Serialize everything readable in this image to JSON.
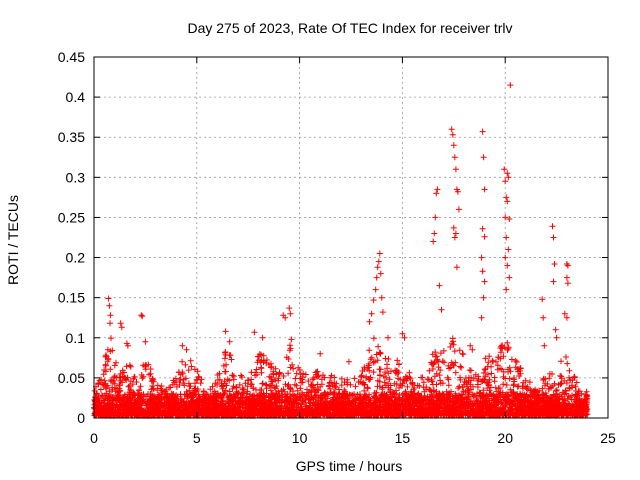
{
  "chart_data": {
    "type": "scatter",
    "title": "Day 275 of 2023, Rate Of TEC Index for receiver trlv",
    "xlabel": "GPS time / hours",
    "ylabel": "ROTI / TECUs",
    "xlim": [
      0,
      25
    ],
    "ylim": [
      0,
      0.45
    ],
    "xticks": [
      "0",
      "5",
      "10",
      "15",
      "20",
      "25"
    ],
    "yticks": [
      "0",
      "0.05",
      "0.1",
      "0.15",
      "0.2",
      "0.25",
      "0.3",
      "0.35",
      "0.4",
      "0.45"
    ],
    "grid": true,
    "marker": "+",
    "color": "#ff0000",
    "baseline": {
      "comment": "dense band of points near zero across the day (approximate envelope)",
      "x_range": [
        0,
        24
      ],
      "y_range": [
        0.003,
        0.03
      ]
    },
    "activity_envelope": [
      [
        0.0,
        0.03
      ],
      [
        0.4,
        0.06
      ],
      [
        0.8,
        0.1
      ],
      [
        1.2,
        0.05
      ],
      [
        1.7,
        0.07
      ],
      [
        2.2,
        0.04
      ],
      [
        2.5,
        0.09
      ],
      [
        3.0,
        0.04
      ],
      [
        3.5,
        0.035
      ],
      [
        4.0,
        0.05
      ],
      [
        4.5,
        0.08
      ],
      [
        5.0,
        0.06
      ],
      [
        5.5,
        0.03
      ],
      [
        6.0,
        0.05
      ],
      [
        6.5,
        0.09
      ],
      [
        7.0,
        0.05
      ],
      [
        7.5,
        0.05
      ],
      [
        8.0,
        0.08
      ],
      [
        8.5,
        0.07
      ],
      [
        9.0,
        0.06
      ],
      [
        9.5,
        0.09
      ],
      [
        10.0,
        0.06
      ],
      [
        10.5,
        0.05
      ],
      [
        11.0,
        0.06
      ],
      [
        11.5,
        0.05
      ],
      [
        12.0,
        0.05
      ],
      [
        12.5,
        0.045
      ],
      [
        13.0,
        0.05
      ],
      [
        13.5,
        0.1
      ],
      [
        14.0,
        0.09
      ],
      [
        14.5,
        0.06
      ],
      [
        15.0,
        0.08
      ],
      [
        15.5,
        0.045
      ],
      [
        16.0,
        0.05
      ],
      [
        16.5,
        0.08
      ],
      [
        17.0,
        0.09
      ],
      [
        17.5,
        0.1
      ],
      [
        18.0,
        0.08
      ],
      [
        18.5,
        0.05
      ],
      [
        19.0,
        0.08
      ],
      [
        19.5,
        0.07
      ],
      [
        20.0,
        0.1
      ],
      [
        20.5,
        0.07
      ],
      [
        21.0,
        0.05
      ],
      [
        21.5,
        0.04
      ],
      [
        22.0,
        0.05
      ],
      [
        22.5,
        0.06
      ],
      [
        23.0,
        0.08
      ],
      [
        23.5,
        0.04
      ],
      [
        24.0,
        0.03
      ]
    ],
    "outliers": [
      [
        0.7,
        0.149
      ],
      [
        0.75,
        0.14
      ],
      [
        0.8,
        0.128
      ],
      [
        0.78,
        0.118
      ],
      [
        1.3,
        0.118
      ],
      [
        1.35,
        0.113
      ],
      [
        1.6,
        0.093
      ],
      [
        1.65,
        0.09
      ],
      [
        2.3,
        0.128
      ],
      [
        2.35,
        0.127
      ],
      [
        2.5,
        0.095
      ],
      [
        4.3,
        0.09
      ],
      [
        4.5,
        0.085
      ],
      [
        6.4,
        0.108
      ],
      [
        6.6,
        0.095
      ],
      [
        7.8,
        0.107
      ],
      [
        8.2,
        0.1
      ],
      [
        9.2,
        0.128
      ],
      [
        9.3,
        0.125
      ],
      [
        9.5,
        0.137
      ],
      [
        9.55,
        0.13
      ],
      [
        9.6,
        0.098
      ],
      [
        11.0,
        0.08
      ],
      [
        12.4,
        0.07
      ],
      [
        13.4,
        0.12
      ],
      [
        13.5,
        0.13
      ],
      [
        13.6,
        0.147
      ],
      [
        13.7,
        0.16
      ],
      [
        13.75,
        0.175
      ],
      [
        13.8,
        0.188
      ],
      [
        13.85,
        0.195
      ],
      [
        13.9,
        0.205
      ],
      [
        13.95,
        0.18
      ],
      [
        14.0,
        0.15
      ],
      [
        14.05,
        0.132
      ],
      [
        14.3,
        0.1
      ],
      [
        15.0,
        0.105
      ],
      [
        15.1,
        0.1
      ],
      [
        16.5,
        0.22
      ],
      [
        16.55,
        0.23
      ],
      [
        16.6,
        0.25
      ],
      [
        16.65,
        0.28
      ],
      [
        16.7,
        0.285
      ],
      [
        16.8,
        0.165
      ],
      [
        16.9,
        0.135
      ],
      [
        17.4,
        0.36
      ],
      [
        17.45,
        0.353
      ],
      [
        17.5,
        0.34
      ],
      [
        17.55,
        0.325
      ],
      [
        17.6,
        0.31
      ],
      [
        17.65,
        0.285
      ],
      [
        17.7,
        0.282
      ],
      [
        17.75,
        0.26
      ],
      [
        17.5,
        0.237
      ],
      [
        17.6,
        0.23
      ],
      [
        17.65,
        0.188
      ],
      [
        17.55,
        0.225
      ],
      [
        18.3,
        0.09
      ],
      [
        18.4,
        0.085
      ],
      [
        18.9,
        0.357
      ],
      [
        18.95,
        0.325
      ],
      [
        19.0,
        0.285
      ],
      [
        18.9,
        0.236
      ],
      [
        19.0,
        0.226
      ],
      [
        18.85,
        0.2
      ],
      [
        18.9,
        0.183
      ],
      [
        19.0,
        0.17
      ],
      [
        18.95,
        0.15
      ],
      [
        18.85,
        0.125
      ],
      [
        19.95,
        0.31
      ],
      [
        20.0,
        0.295
      ],
      [
        20.05,
        0.275
      ],
      [
        20.1,
        0.305
      ],
      [
        20.15,
        0.3
      ],
      [
        20.1,
        0.27
      ],
      [
        20.0,
        0.25
      ],
      [
        20.2,
        0.248
      ],
      [
        20.05,
        0.225
      ],
      [
        20.15,
        0.21
      ],
      [
        20.0,
        0.2
      ],
      [
        20.1,
        0.19
      ],
      [
        20.2,
        0.175
      ],
      [
        20.05,
        0.16
      ],
      [
        20.25,
        0.415
      ],
      [
        21.8,
        0.148
      ],
      [
        21.85,
        0.125
      ],
      [
        21.9,
        0.09
      ],
      [
        22.3,
        0.239
      ],
      [
        22.35,
        0.225
      ],
      [
        22.4,
        0.192
      ],
      [
        22.35,
        0.17
      ],
      [
        22.45,
        0.11
      ],
      [
        22.5,
        0.1
      ],
      [
        23.0,
        0.192
      ],
      [
        23.05,
        0.19
      ],
      [
        23.0,
        0.175
      ],
      [
        23.05,
        0.168
      ],
      [
        22.9,
        0.13
      ],
      [
        23.0,
        0.125
      ]
    ]
  }
}
